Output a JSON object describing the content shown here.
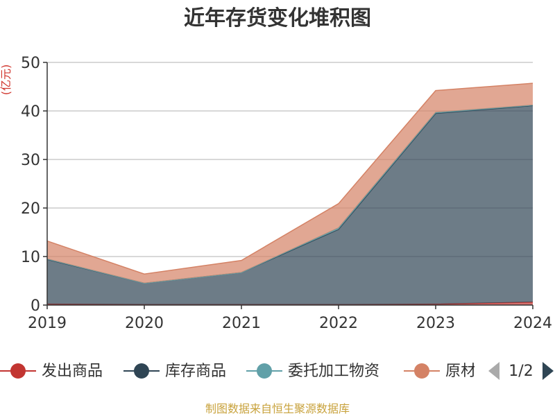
{
  "title": "近年存货变化堆积图",
  "source": "制图数据来自恒生聚源数据库",
  "legend": {
    "page_indicator": "1/2",
    "prev_icon": "triangle-left-icon",
    "next_icon": "triangle-right-icon",
    "visible_text": [
      "发出商品",
      "库存商品",
      "委托加工物资",
      "原材"
    ]
  },
  "chart_data": {
    "type": "area",
    "stacked": true,
    "x": [
      "2019",
      "2020",
      "2021",
      "2022",
      "2023",
      "2024"
    ],
    "ylim": [
      0,
      50
    ],
    "yticks": [
      0,
      10,
      20,
      30,
      40,
      50
    ],
    "ylabel": "(亿元)",
    "grid": true,
    "series": [
      {
        "name": "发出商品",
        "color": "#c23531",
        "values": [
          0.2,
          0.1,
          0.1,
          0.1,
          0.2,
          0.6
        ]
      },
      {
        "name": "库存商品",
        "color": "#2f4554",
        "values": [
          9.2,
          4.4,
          6.6,
          15.5,
          39.3,
          40.5
        ]
      },
      {
        "name": "委托加工物资",
        "color": "#61a0a8",
        "values": [
          0.1,
          0.0,
          0.0,
          0.3,
          0.2,
          0.1
        ]
      },
      {
        "name": "原材料",
        "color": "#d48265",
        "values": [
          3.7,
          1.9,
          2.5,
          5.0,
          4.5,
          4.5
        ]
      }
    ]
  }
}
